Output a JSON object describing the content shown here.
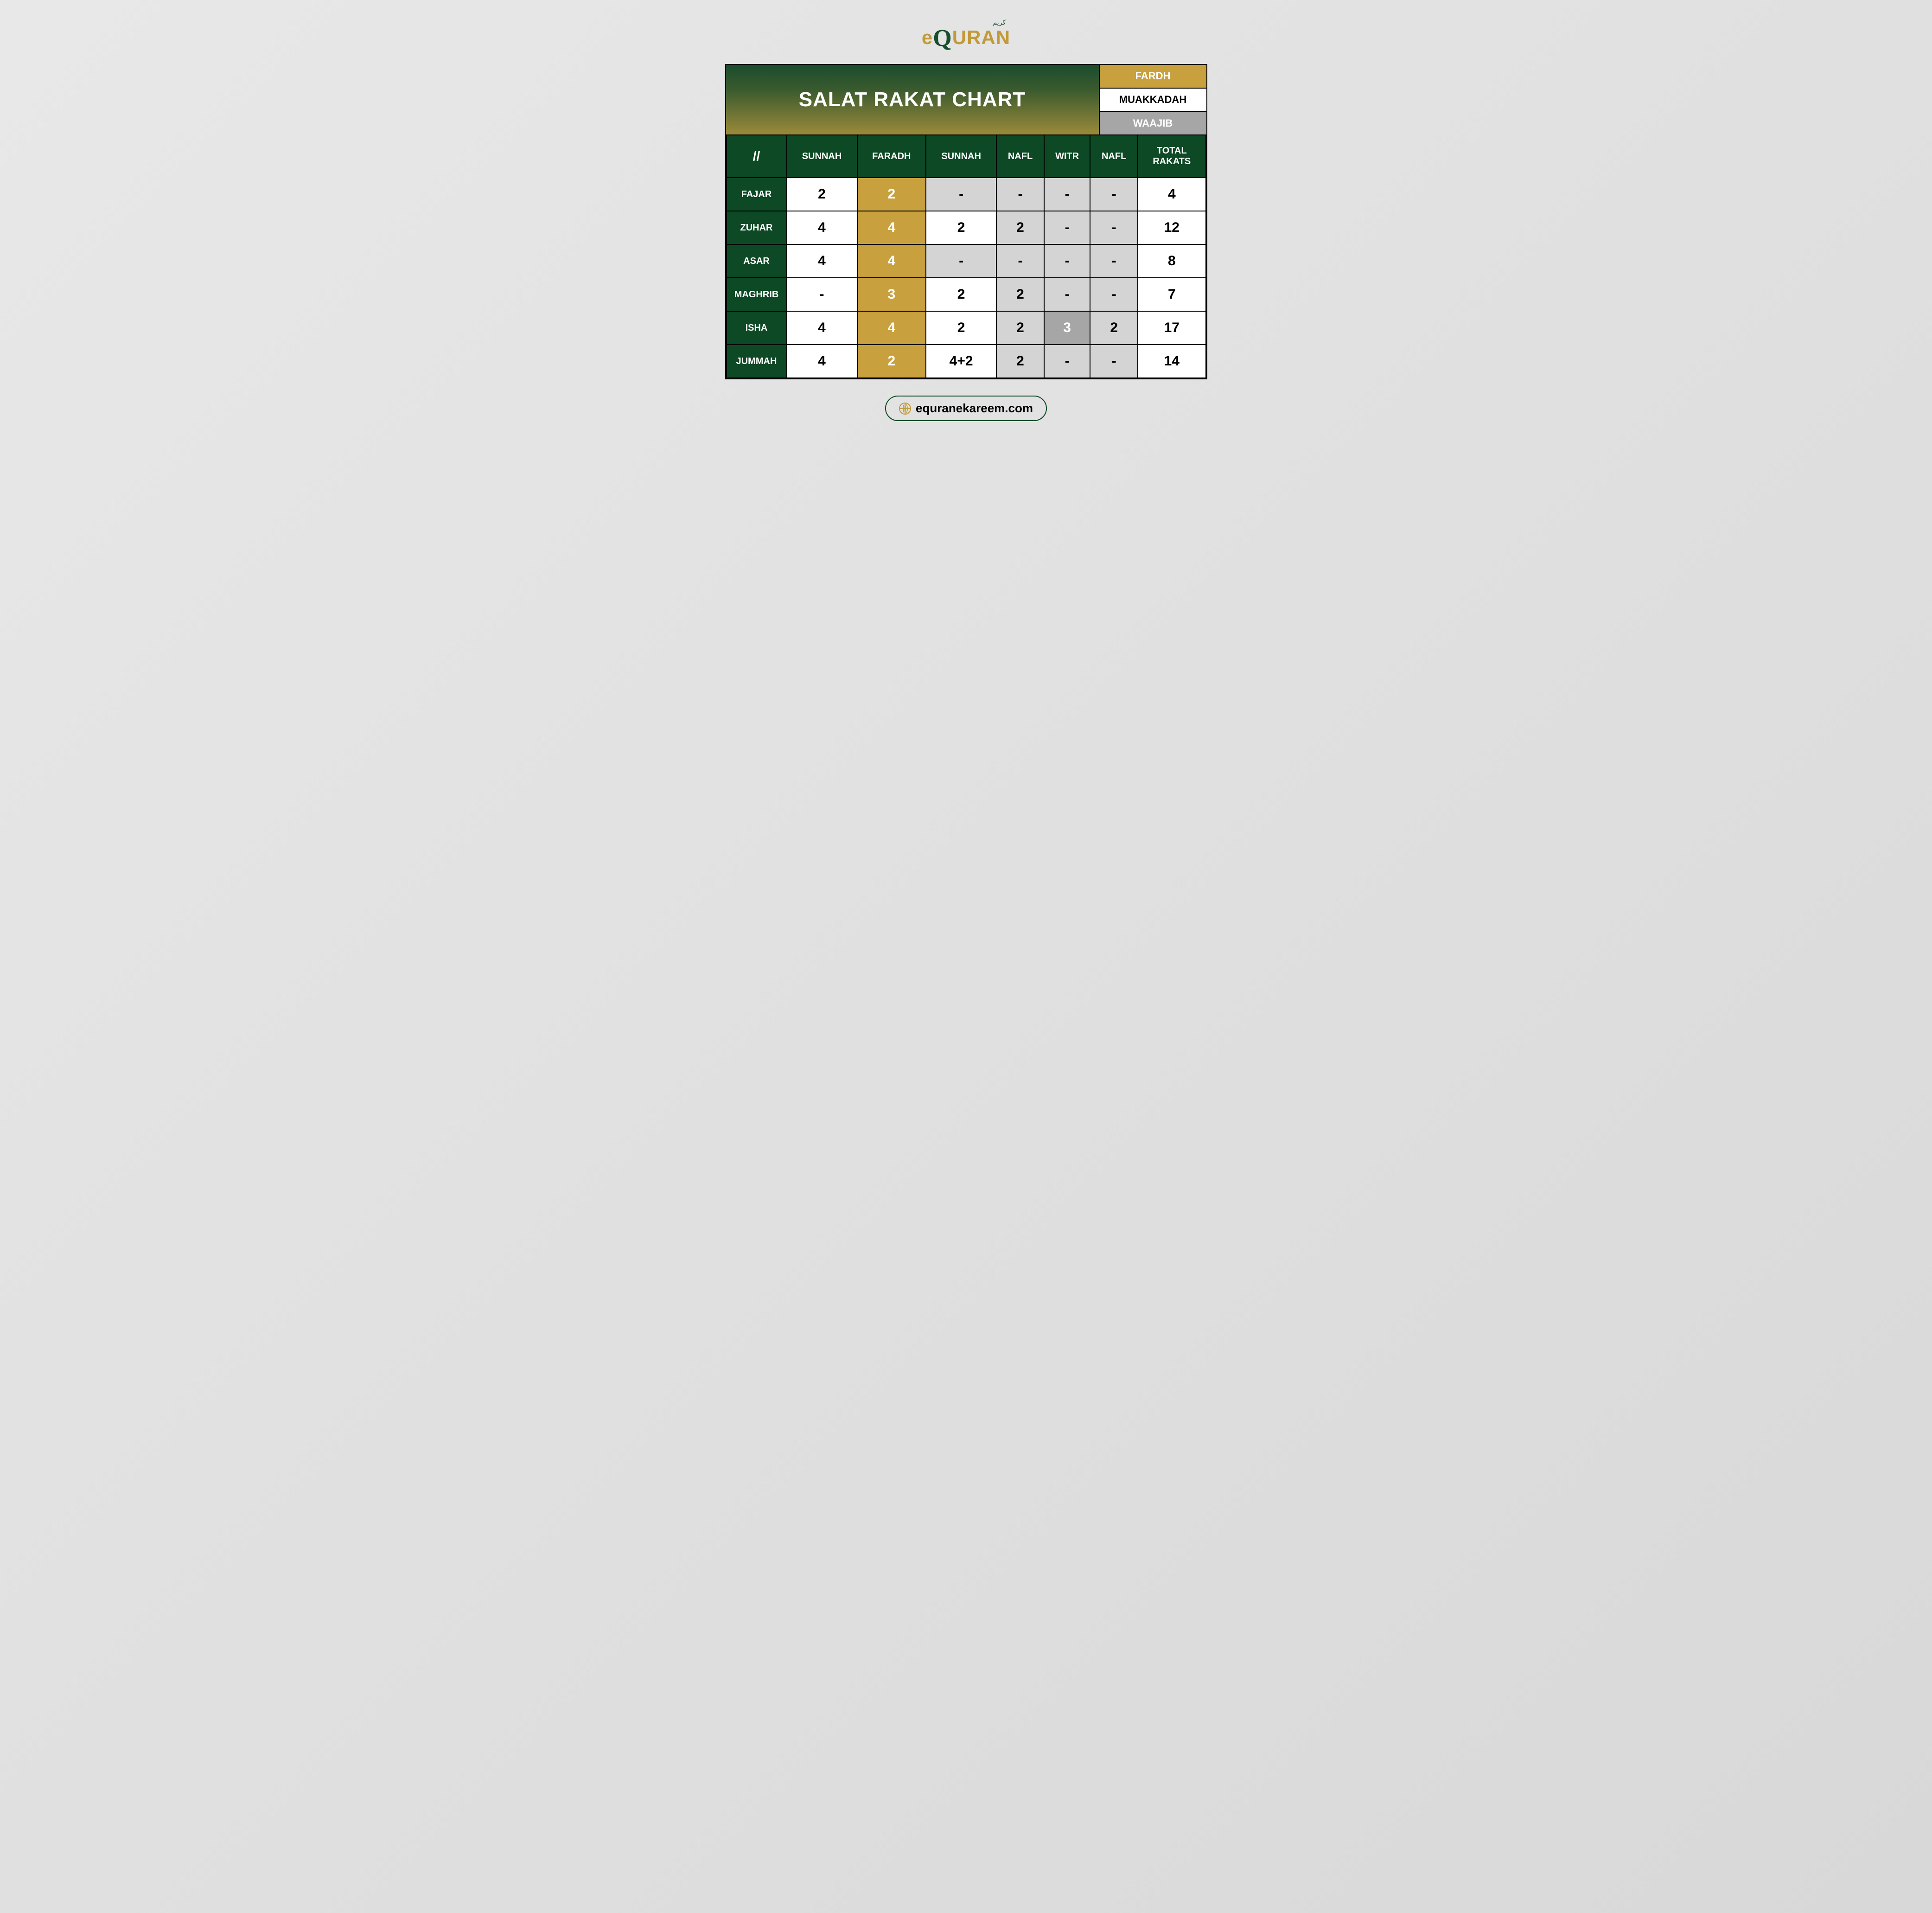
{
  "logo": {
    "arabic": "كريم",
    "e": "e",
    "q": "Q",
    "uran": "URAN"
  },
  "title": "SALAT RAKAT CHART",
  "legend": {
    "fardh": "FARDH",
    "muakkadah": "MUAKKADAH",
    "waajib": "WAAJIB"
  },
  "columns": [
    "//",
    "SUNNAH",
    "FARADH",
    "SUNNAH",
    "NAFL",
    "WITR",
    "NAFL",
    "TOTAL\nRAKATS"
  ],
  "cell_colors": {
    "white": "#ffffff",
    "fardh": "#c8a13e",
    "grey": "#d4d4d4",
    "waajib": "#a6a6a6",
    "header_green": "#0e4926"
  },
  "rows": [
    {
      "name": "FAJAR",
      "cells": [
        {
          "v": "2",
          "c": "white"
        },
        {
          "v": "2",
          "c": "fardh"
        },
        {
          "v": "-",
          "c": "grey"
        },
        {
          "v": "-",
          "c": "grey"
        },
        {
          "v": "-",
          "c": "grey"
        },
        {
          "v": "-",
          "c": "grey"
        },
        {
          "v": "4",
          "c": "white"
        }
      ]
    },
    {
      "name": "ZUHAR",
      "cells": [
        {
          "v": "4",
          "c": "white"
        },
        {
          "v": "4",
          "c": "fardh"
        },
        {
          "v": "2",
          "c": "white"
        },
        {
          "v": "2",
          "c": "grey"
        },
        {
          "v": "-",
          "c": "grey"
        },
        {
          "v": "-",
          "c": "grey"
        },
        {
          "v": "12",
          "c": "white"
        }
      ]
    },
    {
      "name": "ASAR",
      "cells": [
        {
          "v": "4",
          "c": "white"
        },
        {
          "v": "4",
          "c": "fardh"
        },
        {
          "v": "-",
          "c": "grey"
        },
        {
          "v": "-",
          "c": "grey"
        },
        {
          "v": "-",
          "c": "grey"
        },
        {
          "v": "-",
          "c": "grey"
        },
        {
          "v": "8",
          "c": "white"
        }
      ]
    },
    {
      "name": "MAGHRIB",
      "cells": [
        {
          "v": "-",
          "c": "white"
        },
        {
          "v": "3",
          "c": "fardh"
        },
        {
          "v": "2",
          "c": "white"
        },
        {
          "v": "2",
          "c": "grey"
        },
        {
          "v": "-",
          "c": "grey"
        },
        {
          "v": "-",
          "c": "grey"
        },
        {
          "v": "7",
          "c": "white"
        }
      ]
    },
    {
      "name": "ISHA",
      "cells": [
        {
          "v": "4",
          "c": "white"
        },
        {
          "v": "4",
          "c": "fardh"
        },
        {
          "v": "2",
          "c": "white"
        },
        {
          "v": "2",
          "c": "grey"
        },
        {
          "v": "3",
          "c": "waajib"
        },
        {
          "v": "2",
          "c": "grey"
        },
        {
          "v": "17",
          "c": "white"
        }
      ]
    },
    {
      "name": "JUMMAH",
      "cells": [
        {
          "v": "4",
          "c": "white"
        },
        {
          "v": "2",
          "c": "fardh"
        },
        {
          "v": "4+2",
          "c": "white"
        },
        {
          "v": "2",
          "c": "grey"
        },
        {
          "v": "-",
          "c": "grey"
        },
        {
          "v": "-",
          "c": "grey"
        },
        {
          "v": "14",
          "c": "white"
        }
      ]
    }
  ],
  "footer_url": "equranekareem.com"
}
